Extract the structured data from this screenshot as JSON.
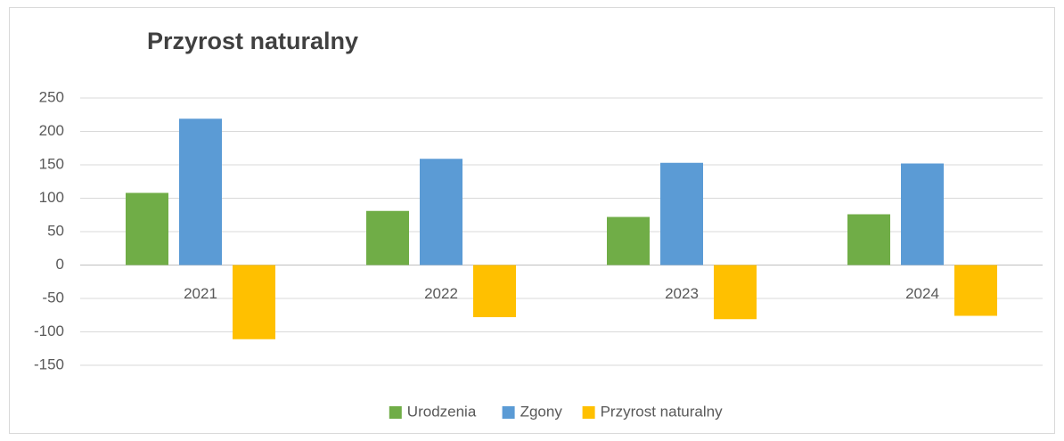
{
  "chart_data": {
    "type": "bar",
    "title": "Przyrost naturalny",
    "categories": [
      "2021",
      "2022",
      "2023",
      "2024"
    ],
    "series": [
      {
        "name": "Urodzenia",
        "color": "#70ad47",
        "values": [
          108,
          81,
          72,
          76
        ]
      },
      {
        "name": "Zgony",
        "color": "#5b9bd5",
        "values": [
          219,
          159,
          153,
          152
        ]
      },
      {
        "name": "Przyrost naturalny",
        "color": "#ffc000",
        "values": [
          -111,
          -78,
          -81,
          -76
        ]
      }
    ],
    "ylim": [
      -150,
      250
    ],
    "yticks": [
      -150,
      -100,
      -50,
      0,
      50,
      100,
      150,
      200,
      250
    ],
    "grid": true,
    "legend": "bottom"
  }
}
